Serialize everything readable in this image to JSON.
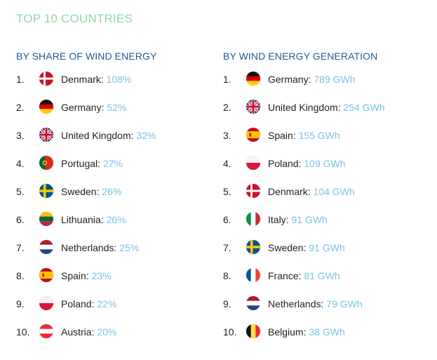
{
  "title": "TOP 10 COUNTRIES",
  "share": {
    "heading": "BY SHARE OF WIND ENERGY",
    "items": [
      {
        "rank": "1.",
        "country": "Denmark",
        "value": "108%",
        "flag": "denmark"
      },
      {
        "rank": "2.",
        "country": "Germany",
        "value": "52%",
        "flag": "germany"
      },
      {
        "rank": "3.",
        "country": "United Kingdom",
        "value": "32%",
        "flag": "uk"
      },
      {
        "rank": "4.",
        "country": "Portugal",
        "value": "27%",
        "flag": "portugal"
      },
      {
        "rank": "5.",
        "country": "Sweden",
        "value": "26%",
        "flag": "sweden"
      },
      {
        "rank": "6.",
        "country": "Lithuania",
        "value": "26%",
        "flag": "lithuania"
      },
      {
        "rank": "7.",
        "country": "Netherlands",
        "value": "25%",
        "flag": "netherlands"
      },
      {
        "rank": "8.",
        "country": "Spain",
        "value": "23%",
        "flag": "spain"
      },
      {
        "rank": "9.",
        "country": "Poland",
        "value": "22%",
        "flag": "poland"
      },
      {
        "rank": "10.",
        "country": "Austria",
        "value": "20%",
        "flag": "austria"
      }
    ]
  },
  "generation": {
    "heading": "BY WIND ENERGY GENERATION",
    "items": [
      {
        "rank": "1.",
        "country": "Germany",
        "value": "789 GWh",
        "flag": "germany"
      },
      {
        "rank": "2.",
        "country": "United Kingdom",
        "value": "254 GWh",
        "flag": "uk"
      },
      {
        "rank": "3.",
        "country": "Spain",
        "value": "155 GWh",
        "flag": "spain"
      },
      {
        "rank": "4.",
        "country": "Poland",
        "value": "109 GWh",
        "flag": "poland"
      },
      {
        "rank": "5.",
        "country": "Denmark",
        "value": "104 GWh",
        "flag": "denmark"
      },
      {
        "rank": "6.",
        "country": "Italy",
        "value": "91 GWh",
        "flag": "italy"
      },
      {
        "rank": "7.",
        "country": "Sweden",
        "value": "91 GWh",
        "flag": "sweden"
      },
      {
        "rank": "8.",
        "country": "France",
        "value": "81 GWh",
        "flag": "france"
      },
      {
        "rank": "9.",
        "country": "Netherlands",
        "value": "79 GWh",
        "flag": "netherlands"
      },
      {
        "rank": "10.",
        "country": "Belgium",
        "value": "38 GWh",
        "flag": "belgium"
      }
    ]
  },
  "colors": {
    "title": "#8fd8a8",
    "heading": "#1f5a8f",
    "value": "#7cc1e6"
  }
}
